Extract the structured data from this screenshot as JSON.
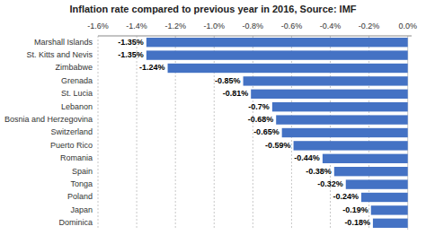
{
  "chart_data": {
    "type": "bar",
    "orientation": "horizontal",
    "title": "Inflation rate compared to previous year in 2016, Source: IMF",
    "categories": [
      "Dominica",
      "Japan",
      "Poland",
      "Tonga",
      "Spain",
      "Romania",
      "Puerto Rico",
      "Switzerland",
      "Bosnia and Herzegovina",
      "Lebanon",
      "St. Lucia",
      "Grenada",
      "Zimbabwe",
      "St. Kitts and Nevis",
      "Marshall Islands"
    ],
    "values": [
      -0.18,
      -0.19,
      -0.24,
      -0.32,
      -0.38,
      -0.44,
      -0.59,
      -0.65,
      -0.68,
      -0.7,
      -0.81,
      -0.85,
      -1.24,
      -1.35,
      -1.35
    ],
    "data_labels": true,
    "value_labels": [
      "-0.18%",
      "-0.19%",
      "-0.24%",
      "-0.32%",
      "-0.38%",
      "-0.44%",
      "-0.59%",
      "-0.65%",
      "-0.68%",
      "-0.7%",
      "-0.81%",
      "-0.85%",
      "-1.24%",
      "-1.35%",
      "-1.35%"
    ],
    "color": "#4472C4",
    "xlim": [
      -1.6,
      0.02
    ],
    "xticks": [
      {
        "value": -1.6,
        "label": "-1.6%"
      },
      {
        "value": -1.4,
        "label": "-1.4%"
      },
      {
        "value": -1.2,
        "label": "-1.2%"
      },
      {
        "value": -1.0,
        "label": "-1.0%"
      },
      {
        "value": -0.8,
        "label": "-0.8%"
      },
      {
        "value": -0.6,
        "label": "-0.6%"
      },
      {
        "value": -0.4,
        "label": "-0.4%"
      },
      {
        "value": -0.2,
        "label": "-0.2%"
      },
      {
        "value": 0.0,
        "label": "0.0%"
      }
    ],
    "grid": true
  }
}
